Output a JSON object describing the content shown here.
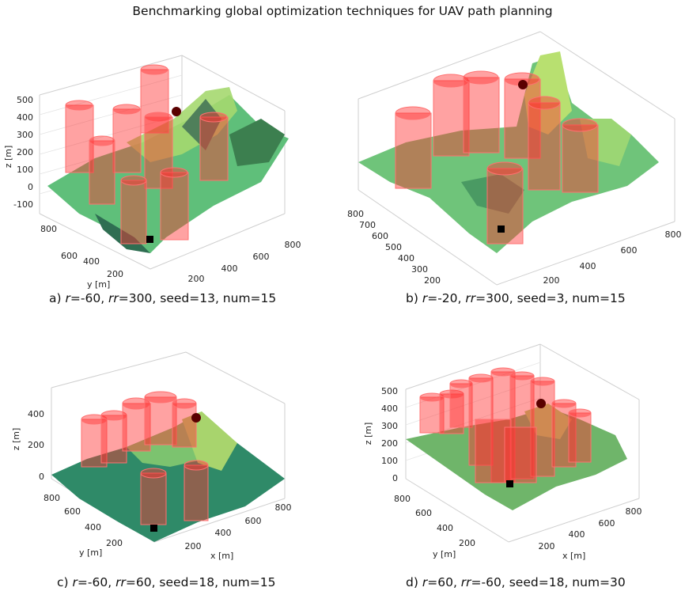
{
  "figure_title": "Benchmarking global optimization techniques for UAV path planning",
  "panels": [
    {
      "caption": {
        "prefix": "a)",
        "r": "-60",
        "rr": "300",
        "seed": "13",
        "num": "15"
      },
      "ylabel_text": "y [m]",
      "zlabel": "z [m]",
      "xlabel": "",
      "z_ticks": [
        "500",
        "400",
        "300",
        "200",
        "100",
        "0",
        "-100"
      ],
      "y_ticks": [
        "800",
        "600",
        "400",
        "200"
      ],
      "x_ticks": [
        "200",
        "400",
        "600",
        "800"
      ]
    },
    {
      "caption": {
        "prefix": "b)",
        "r": "-20",
        "rr": "300",
        "seed": "3",
        "num": "15"
      },
      "ylabel_text": "y [m]",
      "zlabel": "",
      "xlabel": "",
      "z_ticks": [],
      "y_ticks": [
        "800",
        "700",
        "600",
        "500",
        "400",
        "300",
        "200",
        "100"
      ],
      "x_ticks": [
        "200",
        "400",
        "600",
        "800"
      ]
    },
    {
      "caption": {
        "prefix": "c)",
        "r": "-60",
        "rr": "60",
        "seed": "18",
        "num": "15"
      },
      "ylabel_text": "y [m]",
      "zlabel": "z [m]",
      "xlabel": "x [m]",
      "z_ticks": [
        "400",
        "200",
        "0"
      ],
      "y_ticks": [
        "800",
        "600",
        "400",
        "200"
      ],
      "x_ticks": [
        "200",
        "400",
        "600",
        "800"
      ]
    },
    {
      "caption": {
        "prefix": "d)",
        "r": "60",
        "rr": "-60",
        "seed": "18",
        "num": "30"
      },
      "ylabel_text": "y [m]",
      "zlabel": "z [m]",
      "xlabel": "x [m]",
      "z_ticks": [
        "500",
        "400",
        "300",
        "200",
        "100",
        "0"
      ],
      "y_ticks": [
        "800",
        "600",
        "400",
        "200"
      ],
      "x_ticks": [
        "200",
        "400",
        "600",
        "800"
      ]
    }
  ],
  "colors": {
    "obstacle": "#ff3030",
    "terrain_low": "#2f8f66",
    "terrain_high": "#c7e86a",
    "start": "#000000",
    "goal": "#5a0000"
  }
}
